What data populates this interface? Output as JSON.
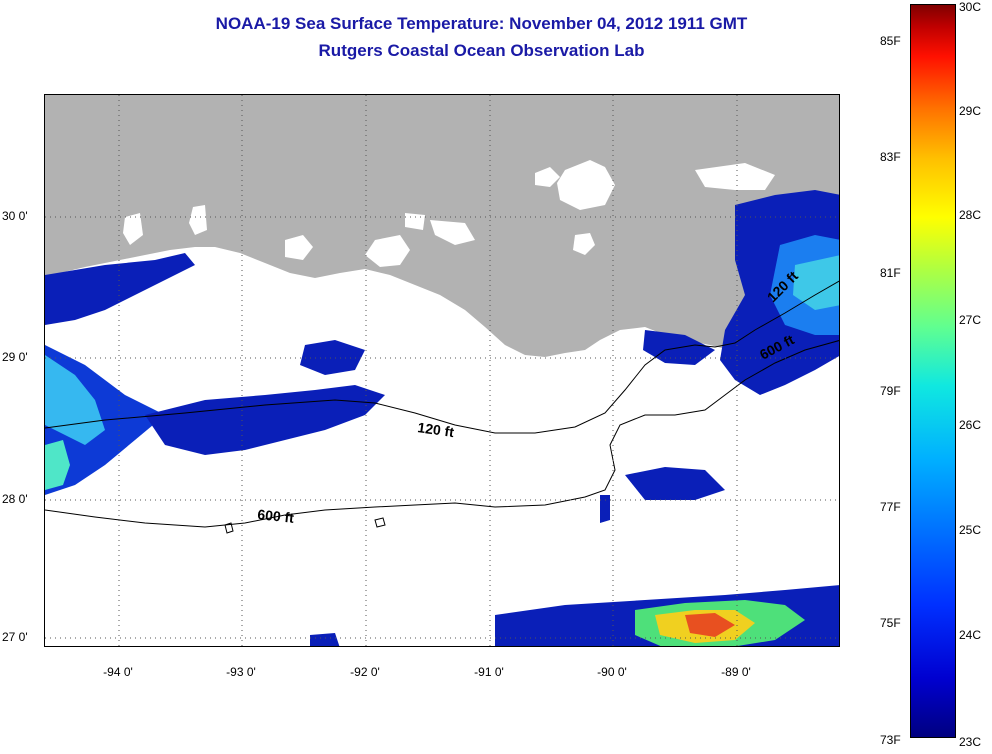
{
  "title": {
    "line1": "NOAA-19 Sea Surface Temperature:  November 04, 2012 1911 GMT",
    "line2": "Rutgers Coastal Ocean Observation Lab"
  },
  "colors": {
    "title": "#1a1aa6",
    "land": "#b2b2b2",
    "sst_low": "#000080",
    "sst_high": "#800000"
  },
  "map": {
    "lat_labels": [
      "30 0'",
      "29 0'",
      "28 0'",
      "27 0'"
    ],
    "lon_labels": [
      "-94 0'",
      "-93 0'",
      "-92 0'",
      "-91 0'",
      "-90 0'",
      "-89 0'"
    ],
    "contours": {
      "isobath_120": "120 ft",
      "isobath_600": "600 ft",
      "isobath_east": "600 ft"
    }
  },
  "colorbar": {
    "fahrenheit_labels": [
      "85F",
      "83F",
      "81F",
      "79F",
      "77F",
      "75F",
      "73F"
    ],
    "celsius_labels": [
      "30C",
      "29C",
      "28C",
      "27C",
      "26C",
      "25C",
      "24C",
      "23C"
    ]
  }
}
